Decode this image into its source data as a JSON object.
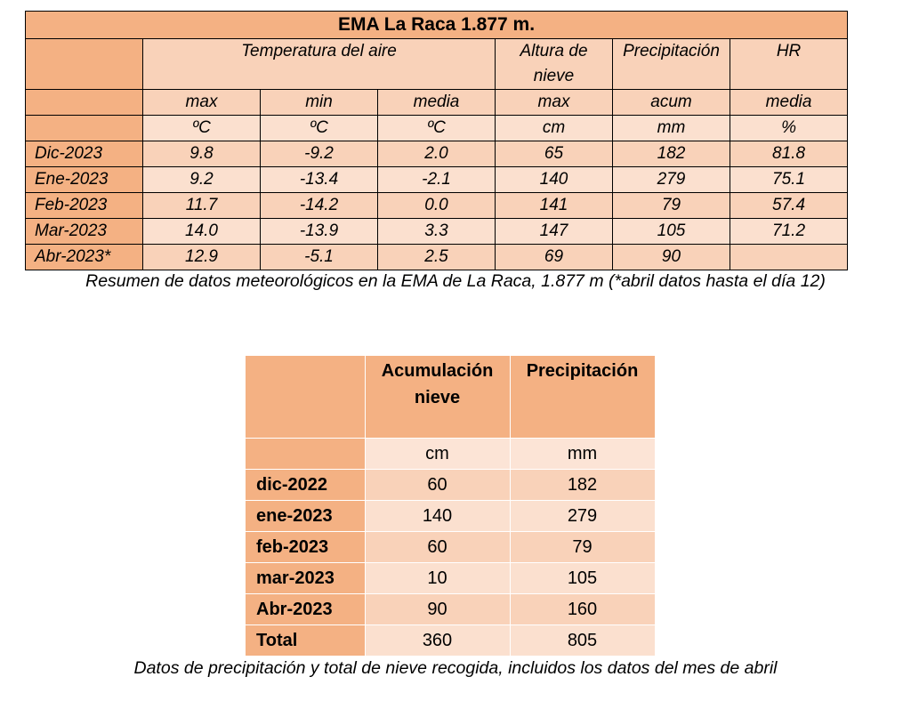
{
  "table1": {
    "title": "EMA La Raca 1.877 m.",
    "header": {
      "temp": "Temperatura del aire",
      "snow": "Altura de nieve",
      "precip": "Precipitación",
      "hr": "HR"
    },
    "sub": [
      "max",
      "min",
      "media",
      "max",
      "acum",
      "media"
    ],
    "units": [
      "ºC",
      "ºC",
      "ºC",
      "cm",
      "mm",
      "%"
    ],
    "rows": [
      {
        "label": "Dic-2023",
        "values": [
          "9.8",
          "-9.2",
          "2.0",
          "65",
          "182",
          "81.8"
        ]
      },
      {
        "label": "Ene-2023",
        "values": [
          "9.2",
          "-13.4",
          "-2.1",
          "140",
          "279",
          "75.1"
        ]
      },
      {
        "label": "Feb-2023",
        "values": [
          "11.7",
          "-14.2",
          "0.0",
          "141",
          "79",
          "57.4"
        ]
      },
      {
        "label": "Mar-2023",
        "values": [
          "14.0",
          "-13.9",
          "3.3",
          "147",
          "105",
          "71.2"
        ]
      },
      {
        "label": "Abr-2023*",
        "values": [
          "12.9",
          "-5.1",
          "2.5",
          "69",
          "90",
          ""
        ]
      }
    ],
    "caption": "Resumen de datos meteorológicos en la EMA de La Raca, 1.877 m (*abril datos hasta el día 12)"
  },
  "table2": {
    "header": [
      "Acumulación nieve",
      "Precipitación"
    ],
    "units": [
      "cm",
      "mm"
    ],
    "rows": [
      {
        "label": "dic-2022",
        "values": [
          "60",
          "182"
        ]
      },
      {
        "label": "ene-2023",
        "values": [
          "140",
          "279"
        ]
      },
      {
        "label": "feb-2023",
        "values": [
          "60",
          "79"
        ]
      },
      {
        "label": "mar-2023",
        "values": [
          "10",
          "105"
        ]
      },
      {
        "label": "Abr-2023",
        "values": [
          "90",
          "160"
        ]
      },
      {
        "label": "Total",
        "values": [
          "360",
          "805"
        ]
      }
    ],
    "caption": "Datos de precipitación y total de nieve recogida, incluidos los datos del mes de abril"
  }
}
